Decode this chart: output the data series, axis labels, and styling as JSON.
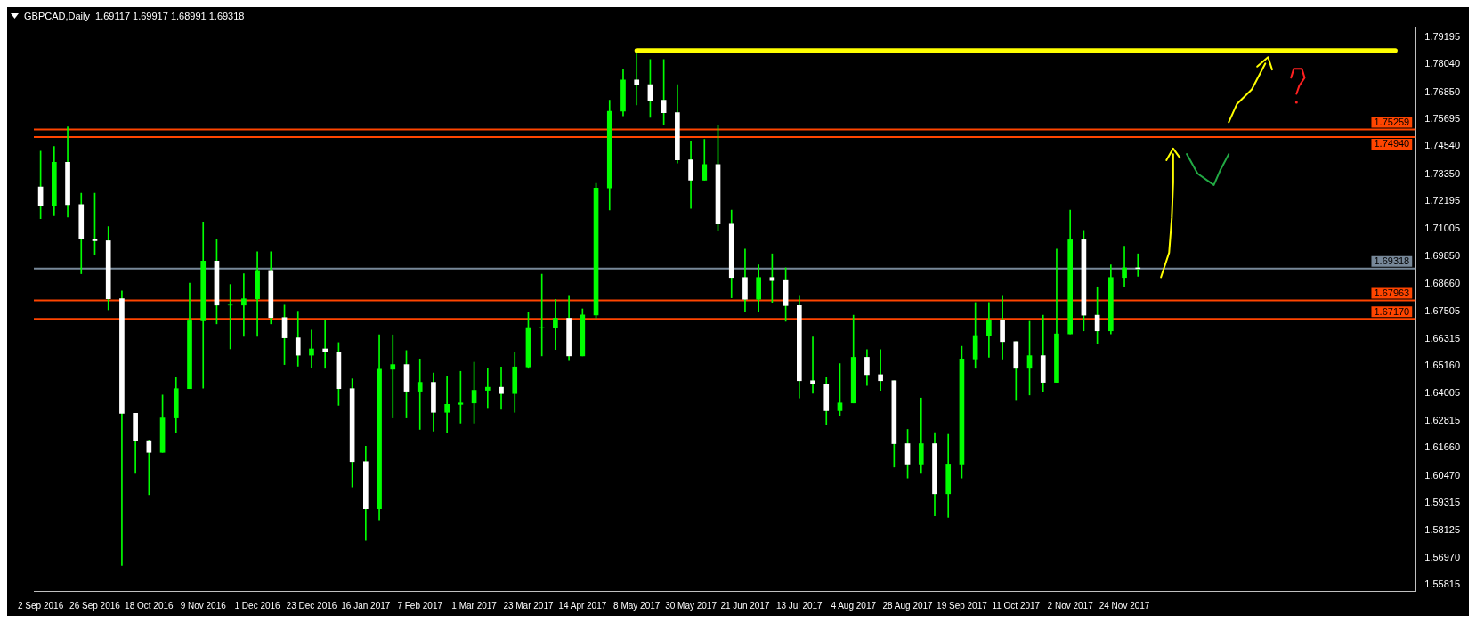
{
  "chart_data": {
    "type": "candlestick",
    "title": "GBPCAD,Daily  1.69117 1.69917 1.68991 1.69318",
    "color": "#00ff00",
    "categories": [
      "2 Sep 2016",
      null,
      null,
      null,
      "26 Sep 2016",
      null,
      null,
      null,
      "18 Oct 2016",
      null,
      null,
      null,
      "9 Nov 2016",
      null,
      null,
      null,
      "1 Dec 2016",
      null,
      null,
      null,
      "23 Dec 2016",
      null,
      null,
      null,
      "16 Jan 2017",
      null,
      null,
      null,
      "7 Feb 2017",
      null,
      null,
      null,
      "1 Mar 2017",
      null,
      null,
      null,
      "23 Mar 2017",
      null,
      null,
      null,
      "14 Apr 2017",
      null,
      null,
      null,
      "8 May 2017",
      null,
      null,
      null,
      "30 May 2017",
      null,
      null,
      null,
      "21 Jun 2017",
      null,
      null,
      null,
      "13 Jul 2017",
      null,
      null,
      null,
      "4 Aug 2017",
      null,
      null,
      null,
      "28 Aug 2017",
      null,
      null,
      null,
      "19 Sep 2017",
      null,
      null,
      null,
      "11 Oct 2017",
      null,
      null,
      null,
      "2 Nov 2017",
      null,
      null,
      null,
      "24 Nov 2017",
      null,
      null,
      null,
      null,
      null,
      null,
      null,
      null,
      null,
      null,
      null,
      null,
      null,
      null,
      null,
      null,
      null,
      null,
      null,
      null,
      null
    ],
    "ohlc": [
      [
        1.728,
        1.7433,
        1.7145,
        1.7198
      ],
      [
        1.7198,
        1.7453,
        1.7158,
        1.7386
      ],
      [
        1.7386,
        1.7537,
        1.7152,
        1.7205
      ],
      [
        1.7205,
        1.7254,
        1.691,
        1.7058
      ],
      [
        1.7058,
        1.7254,
        1.6991,
        1.7051
      ],
      [
        1.7051,
        1.7111,
        1.6756,
        1.6803
      ],
      [
        1.6803,
        1.6837,
        1.5664,
        1.6314
      ],
      [
        1.6314,
        1.6314,
        1.6057,
        1.6197
      ],
      [
        1.6197,
        1.62,
        1.5966,
        1.6147
      ],
      [
        1.6147,
        1.6392,
        1.6147,
        1.6294
      ],
      [
        1.6294,
        1.6466,
        1.6231,
        1.6419
      ],
      [
        1.6419,
        1.687,
        1.6419,
        1.6709
      ],
      [
        1.6709,
        1.7131,
        1.6421,
        1.6964
      ],
      [
        1.6964,
        1.7058,
        1.6696,
        1.6776
      ],
      [
        1.6776,
        1.6864,
        1.6589,
        1.6776
      ],
      [
        1.6776,
        1.691,
        1.6642,
        1.6803
      ],
      [
        1.6803,
        1.7004,
        1.6642,
        1.6924
      ],
      [
        1.6924,
        1.7004,
        1.6696,
        1.6723
      ],
      [
        1.6723,
        1.6776,
        1.6522,
        1.6636
      ],
      [
        1.6636,
        1.675,
        1.6515,
        1.6562
      ],
      [
        1.6562,
        1.6669,
        1.6508,
        1.6589
      ],
      [
        1.6589,
        1.671,
        1.6506,
        1.6575
      ],
      [
        1.6575,
        1.6616,
        1.6348,
        1.6419
      ],
      [
        1.6419,
        1.6461,
        1.5999,
        1.6107
      ],
      [
        1.6107,
        1.6173,
        1.5771,
        1.5906
      ],
      [
        1.5906,
        1.6649,
        1.5858,
        1.6502
      ],
      [
        1.6502,
        1.6649,
        1.6294,
        1.6522
      ],
      [
        1.6522,
        1.6582,
        1.6294,
        1.6408
      ],
      [
        1.6408,
        1.6546,
        1.6245,
        1.6446
      ],
      [
        1.6446,
        1.6486,
        1.6238,
        1.6318
      ],
      [
        1.6318,
        1.6472,
        1.6231,
        1.6352
      ],
      [
        1.6352,
        1.6493,
        1.6272,
        1.6358
      ],
      [
        1.6358,
        1.6532,
        1.6272,
        1.6412
      ],
      [
        1.6412,
        1.6506,
        1.6338,
        1.6425
      ],
      [
        1.6425,
        1.6512,
        1.6331,
        1.6398
      ],
      [
        1.6398,
        1.6573,
        1.6318,
        1.6512
      ],
      [
        1.6512,
        1.6747,
        1.6506,
        1.668
      ],
      [
        1.668,
        1.6908,
        1.6559,
        1.668
      ],
      [
        1.668,
        1.6801,
        1.6586,
        1.672
      ],
      [
        1.672,
        1.6814,
        1.6539,
        1.6559
      ],
      [
        1.6559,
        1.676,
        1.6559,
        1.6734
      ],
      [
        1.6734,
        1.7296,
        1.672,
        1.7276
      ],
      [
        1.7276,
        1.7651,
        1.7182,
        1.7604
      ],
      [
        1.7604,
        1.7785,
        1.7584,
        1.7738
      ],
      [
        1.7738,
        1.7866,
        1.7631,
        1.7718
      ],
      [
        1.7718,
        1.7825,
        1.7578,
        1.7651
      ],
      [
        1.7651,
        1.7825,
        1.7544,
        1.7598
      ],
      [
        1.7598,
        1.7718,
        1.7383,
        1.7396
      ],
      [
        1.7396,
        1.7477,
        1.7189,
        1.731
      ],
      [
        1.731,
        1.7484,
        1.731,
        1.7376
      ],
      [
        1.7376,
        1.7544,
        1.7094,
        1.7122
      ],
      [
        1.7122,
        1.7182,
        1.6807,
        1.6894
      ],
      [
        1.6894,
        1.7015,
        1.6747,
        1.6801
      ],
      [
        1.6801,
        1.6948,
        1.6747,
        1.6894
      ],
      [
        1.6894,
        1.6995,
        1.6787,
        1.6881
      ],
      [
        1.6881,
        1.6935,
        1.6707,
        1.6774
      ],
      [
        1.6774,
        1.6814,
        1.6379,
        1.6453
      ],
      [
        1.6453,
        1.664,
        1.6399,
        1.6439
      ],
      [
        1.6439,
        1.6466,
        1.6265,
        1.6325
      ],
      [
        1.6325,
        1.6526,
        1.6305,
        1.6358
      ],
      [
        1.6358,
        1.6733,
        1.6358,
        1.6553
      ],
      [
        1.6553,
        1.6586,
        1.6432,
        1.6479
      ],
      [
        1.6479,
        1.6586,
        1.6412,
        1.6453
      ],
      [
        1.6453,
        1.6453,
        1.6084,
        1.6184
      ],
      [
        1.6184,
        1.6245,
        1.6037,
        1.6097
      ],
      [
        1.6097,
        1.6379,
        1.6057,
        1.6184
      ],
      [
        1.6184,
        1.6231,
        1.5876,
        1.597
      ],
      [
        1.597,
        1.6224,
        1.5869,
        1.6097
      ],
      [
        1.6097,
        1.66,
        1.6037,
        1.6546
      ],
      [
        1.6546,
        1.6787,
        1.6506,
        1.6646
      ],
      [
        1.6646,
        1.6787,
        1.6553,
        1.6713
      ],
      [
        1.6713,
        1.6814,
        1.6546,
        1.662
      ],
      [
        1.662,
        1.662,
        1.6372,
        1.6506
      ],
      [
        1.6506,
        1.6707,
        1.6392,
        1.656
      ],
      [
        1.656,
        1.6733,
        1.6405,
        1.6446
      ],
      [
        1.6446,
        1.7015,
        1.6446,
        1.6653
      ],
      [
        1.6653,
        1.7182,
        1.6653,
        1.7055
      ],
      [
        1.7055,
        1.7095,
        1.6666,
        1.6733
      ],
      [
        1.6733,
        1.6854,
        1.6613,
        1.6666
      ],
      [
        1.6666,
        1.6948,
        1.6653,
        1.6894
      ],
      [
        1.6894,
        1.7028,
        1.6854,
        1.6935
      ],
      [
        1.6935,
        1.6995,
        1.6899,
        1.69318
      ],
      null,
      null,
      null,
      null,
      null,
      null,
      null,
      null,
      null,
      null,
      null,
      null,
      null,
      null,
      null,
      null,
      null,
      null,
      null,
      null
    ],
    "series": [
      {
        "type": "line",
        "color": "#ffff00",
        "values": [
          null,
          null,
          null,
          null,
          null,
          null,
          null,
          null,
          null,
          null,
          null,
          null,
          null,
          null,
          null,
          null,
          null,
          null,
          null,
          null,
          null,
          null,
          null,
          null,
          null,
          null,
          null,
          null,
          null,
          null,
          null,
          null,
          null,
          null,
          null,
          null,
          null,
          null,
          null,
          null,
          null,
          null,
          null,
          null,
          1.7863,
          1.7863,
          1.7863,
          1.7863,
          1.7863,
          1.7863,
          1.7863,
          1.7863,
          1.7863,
          1.7863,
          1.7863,
          1.7863,
          1.7863,
          1.7863,
          1.7863,
          1.7863,
          1.7863,
          1.7863,
          1.7863,
          1.7863,
          1.7863,
          1.7863,
          1.7863,
          1.7863,
          1.7863,
          1.7863,
          1.7863,
          1.7863,
          1.7863,
          1.7863,
          1.7863,
          1.7863,
          1.7863,
          1.7863,
          1.7863,
          1.7863,
          1.7863,
          1.7863,
          1.7863,
          1.7863,
          1.7863,
          1.7863,
          1.7863,
          1.7863,
          1.7863,
          1.7863,
          1.7863,
          1.7863,
          1.7863,
          1.7863,
          1.7863,
          1.7863,
          1.7863,
          1.7863,
          1.7863,
          1.7863,
          1.7863,
          null
        ]
      }
    ],
    "colors": [
      "#ffffff",
      "#00ff00",
      "#ffffff",
      "#ffffff",
      "#ffffff",
      "#ffffff",
      "#ffffff",
      "#ffffff",
      "#ffffff",
      "#00ff00",
      "#00ff00",
      "#00ff00",
      "#00ff00",
      "#ffffff",
      "#00ff00",
      "#00ff00",
      "#00ff00",
      "#ffffff",
      "#ffffff",
      "#ffffff",
      "#00ff00",
      "#ffffff",
      "#ffffff",
      "#ffffff",
      "#ffffff",
      "#00ff00",
      "#00ff00",
      "#ffffff",
      "#00ff00",
      "#ffffff",
      "#00ff00",
      "#00ff00",
      "#00ff00",
      "#00ff00",
      "#ffffff",
      "#00ff00",
      "#00ff00",
      "#00ff00",
      "#00ff00",
      "#ffffff",
      "#00ff00",
      "#00ff00",
      "#00ff00",
      "#00ff00",
      "#ffffff",
      "#ffffff",
      "#ffffff",
      "#ffffff",
      "#ffffff",
      "#00ff00",
      "#ffffff",
      "#ffffff",
      "#ffffff",
      "#00ff00",
      "#ffffff",
      "#ffffff",
      "#ffffff",
      "#ffffff",
      "#ffffff",
      "#00ff00",
      "#00ff00",
      "#ffffff",
      "#ffffff",
      "#ffffff",
      "#ffffff",
      "#00ff00",
      "#ffffff",
      "#00ff00",
      "#00ff00",
      "#00ff00",
      "#00ff00",
      "#ffffff",
      "#ffffff",
      "#00ff00",
      "#ffffff",
      "#00ff00",
      "#00ff00",
      "#ffffff",
      "#ffffff",
      "#00ff00",
      "#00ff00",
      "#ffffff",
      null,
      null,
      null,
      null,
      null,
      null,
      null,
      null,
      null,
      null,
      null,
      null,
      null,
      null,
      null,
      null,
      null,
      null,
      null,
      null
    ],
    "ylim": [
      1.5555,
      1.7965
    ],
    "yticks": [
      1.55815,
      {
        "value": 1.5697,
        "label": "1.56970"
      },
      1.58125,
      1.59315,
      {
        "value": 1.6047,
        "label": "1.60470"
      },
      {
        "value": 1.6166,
        "label": "1.61660"
      },
      1.62815,
      1.64005,
      {
        "value": 1.6516,
        "label": "1.65160"
      },
      1.66315,
      1.67505,
      {
        "value": 1.6866,
        "label": "1.68660"
      },
      {
        "value": 1.6985,
        "label": "1.69850"
      },
      1.71005,
      1.72195,
      {
        "value": 1.7335,
        "label": "1.73350"
      },
      {
        "value": 1.7454,
        "label": "1.74540"
      },
      1.75695,
      {
        "value": 1.7685,
        "label": "1.76850"
      },
      {
        "value": 1.7804,
        "label": "1.78040"
      },
      1.79195
    ],
    "ref_lines": [
      {
        "axis": "y",
        "value": 1.75259,
        "label": "1.75259",
        "color": "#ff4500"
      },
      {
        "axis": "y",
        "value": 1.7494,
        "label": "1.74940",
        "color": "#ff4500"
      },
      {
        "axis": "y",
        "value": 1.69318,
        "label": "1.69318",
        "color": "#778899"
      },
      {
        "axis": "y",
        "value": 1.67963,
        "label": "1.67963",
        "color": "#ff4500"
      },
      {
        "axis": "y",
        "value": 1.6717,
        "label": "1.67170",
        "color": "#ff4500"
      }
    ],
    "grid": false,
    "legend": false
  }
}
